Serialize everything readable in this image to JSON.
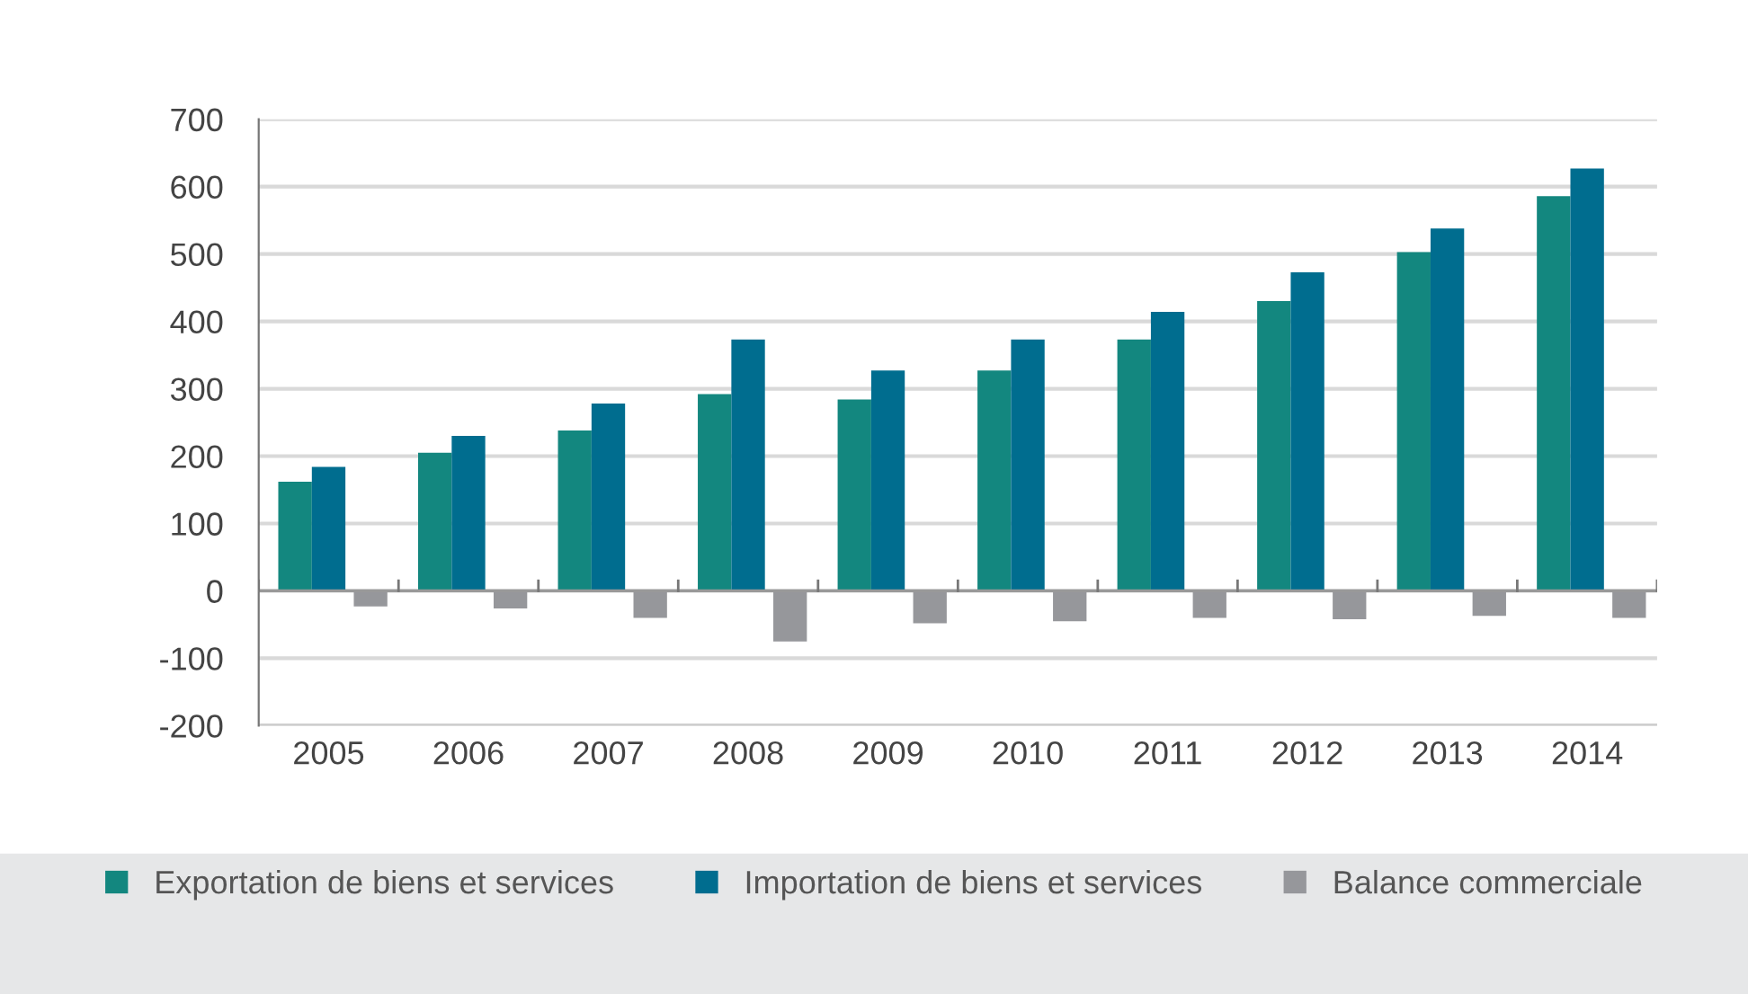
{
  "chart_data": {
    "type": "bar",
    "categories": [
      "2005",
      "2006",
      "2007",
      "2008",
      "2009",
      "2010",
      "2011",
      "2012",
      "2013",
      "2014"
    ],
    "series": [
      {
        "name": "Exportation de biens et services",
        "color": "#13877f",
        "values": [
          162,
          205,
          238,
          292,
          284,
          327,
          373,
          430,
          503,
          586
        ]
      },
      {
        "name": "Importation de biens et services",
        "color": "#006d8f",
        "values": [
          184,
          230,
          278,
          373,
          327,
          373,
          414,
          473,
          538,
          627
        ]
      },
      {
        "name": "Balance commerciale",
        "color": "#96979b",
        "values": [
          -23,
          -26,
          -40,
          -75,
          -48,
          -45,
          -40,
          -42,
          -37,
          -40
        ]
      }
    ],
    "ylim": [
      -200,
      700
    ],
    "yticks": [
      -200,
      -100,
      0,
      100,
      200,
      300,
      400,
      500,
      600,
      700
    ],
    "grid": "y",
    "legend": "bottom"
  }
}
